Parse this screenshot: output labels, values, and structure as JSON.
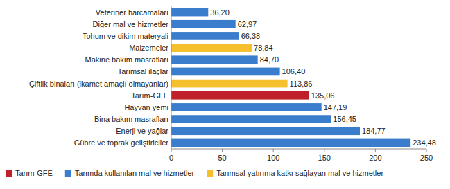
{
  "chart_data": {
    "type": "bar",
    "orientation": "horizontal",
    "stacked": true,
    "data_labels": true,
    "grid": false,
    "legend": "bottom",
    "categories": [
      "Veteriner harcamaları",
      "Diğer mal ve hizmetler",
      "Tohum ve dikim materyali",
      "Malzemeler",
      "Makine bakım masrafları",
      "Tarımsal ilaçlar",
      "Çiftlik binaları (ikamet amaçlı olmayanlar)",
      "Tarım-GFE",
      "Hayvan yemi",
      "Bina bakım masrafları",
      "Enerji ve yağlar",
      "Gübre ve toprak geliştiriciler"
    ],
    "series": [
      {
        "name": "Tarım-GFE",
        "color": "#c0202a",
        "values": [
          null,
          null,
          null,
          null,
          null,
          null,
          null,
          135.06,
          null,
          null,
          null,
          null
        ],
        "value_labels": [
          null,
          null,
          null,
          null,
          null,
          null,
          null,
          "135,06",
          null,
          null,
          null,
          null
        ]
      },
      {
        "name": "Tarımda kullanılan mal ve hizmetler",
        "color": "#3a7dcc",
        "values": [
          36.2,
          62.97,
          66.38,
          null,
          84.7,
          106.4,
          null,
          null,
          147.19,
          156.45,
          184.77,
          234.48
        ],
        "value_labels": [
          "36,20",
          "62,97",
          "66,38",
          null,
          "84,70",
          "106,40",
          null,
          null,
          "147,19",
          "156,45",
          "184,77",
          "234,48"
        ]
      },
      {
        "name": "Tarımsal yatırıma katkı sağlayan mal ve hizmetler",
        "color": "#f5c02c",
        "values": [
          null,
          null,
          null,
          78.84,
          null,
          null,
          113.86,
          null,
          null,
          null,
          null,
          null
        ],
        "value_labels": [
          null,
          null,
          null,
          "78,84",
          null,
          null,
          "113,86",
          null,
          null,
          null,
          null,
          null
        ]
      }
    ],
    "xlim": [
      0,
      250
    ],
    "xticks": [
      0,
      50,
      100,
      150,
      200,
      250
    ]
  }
}
